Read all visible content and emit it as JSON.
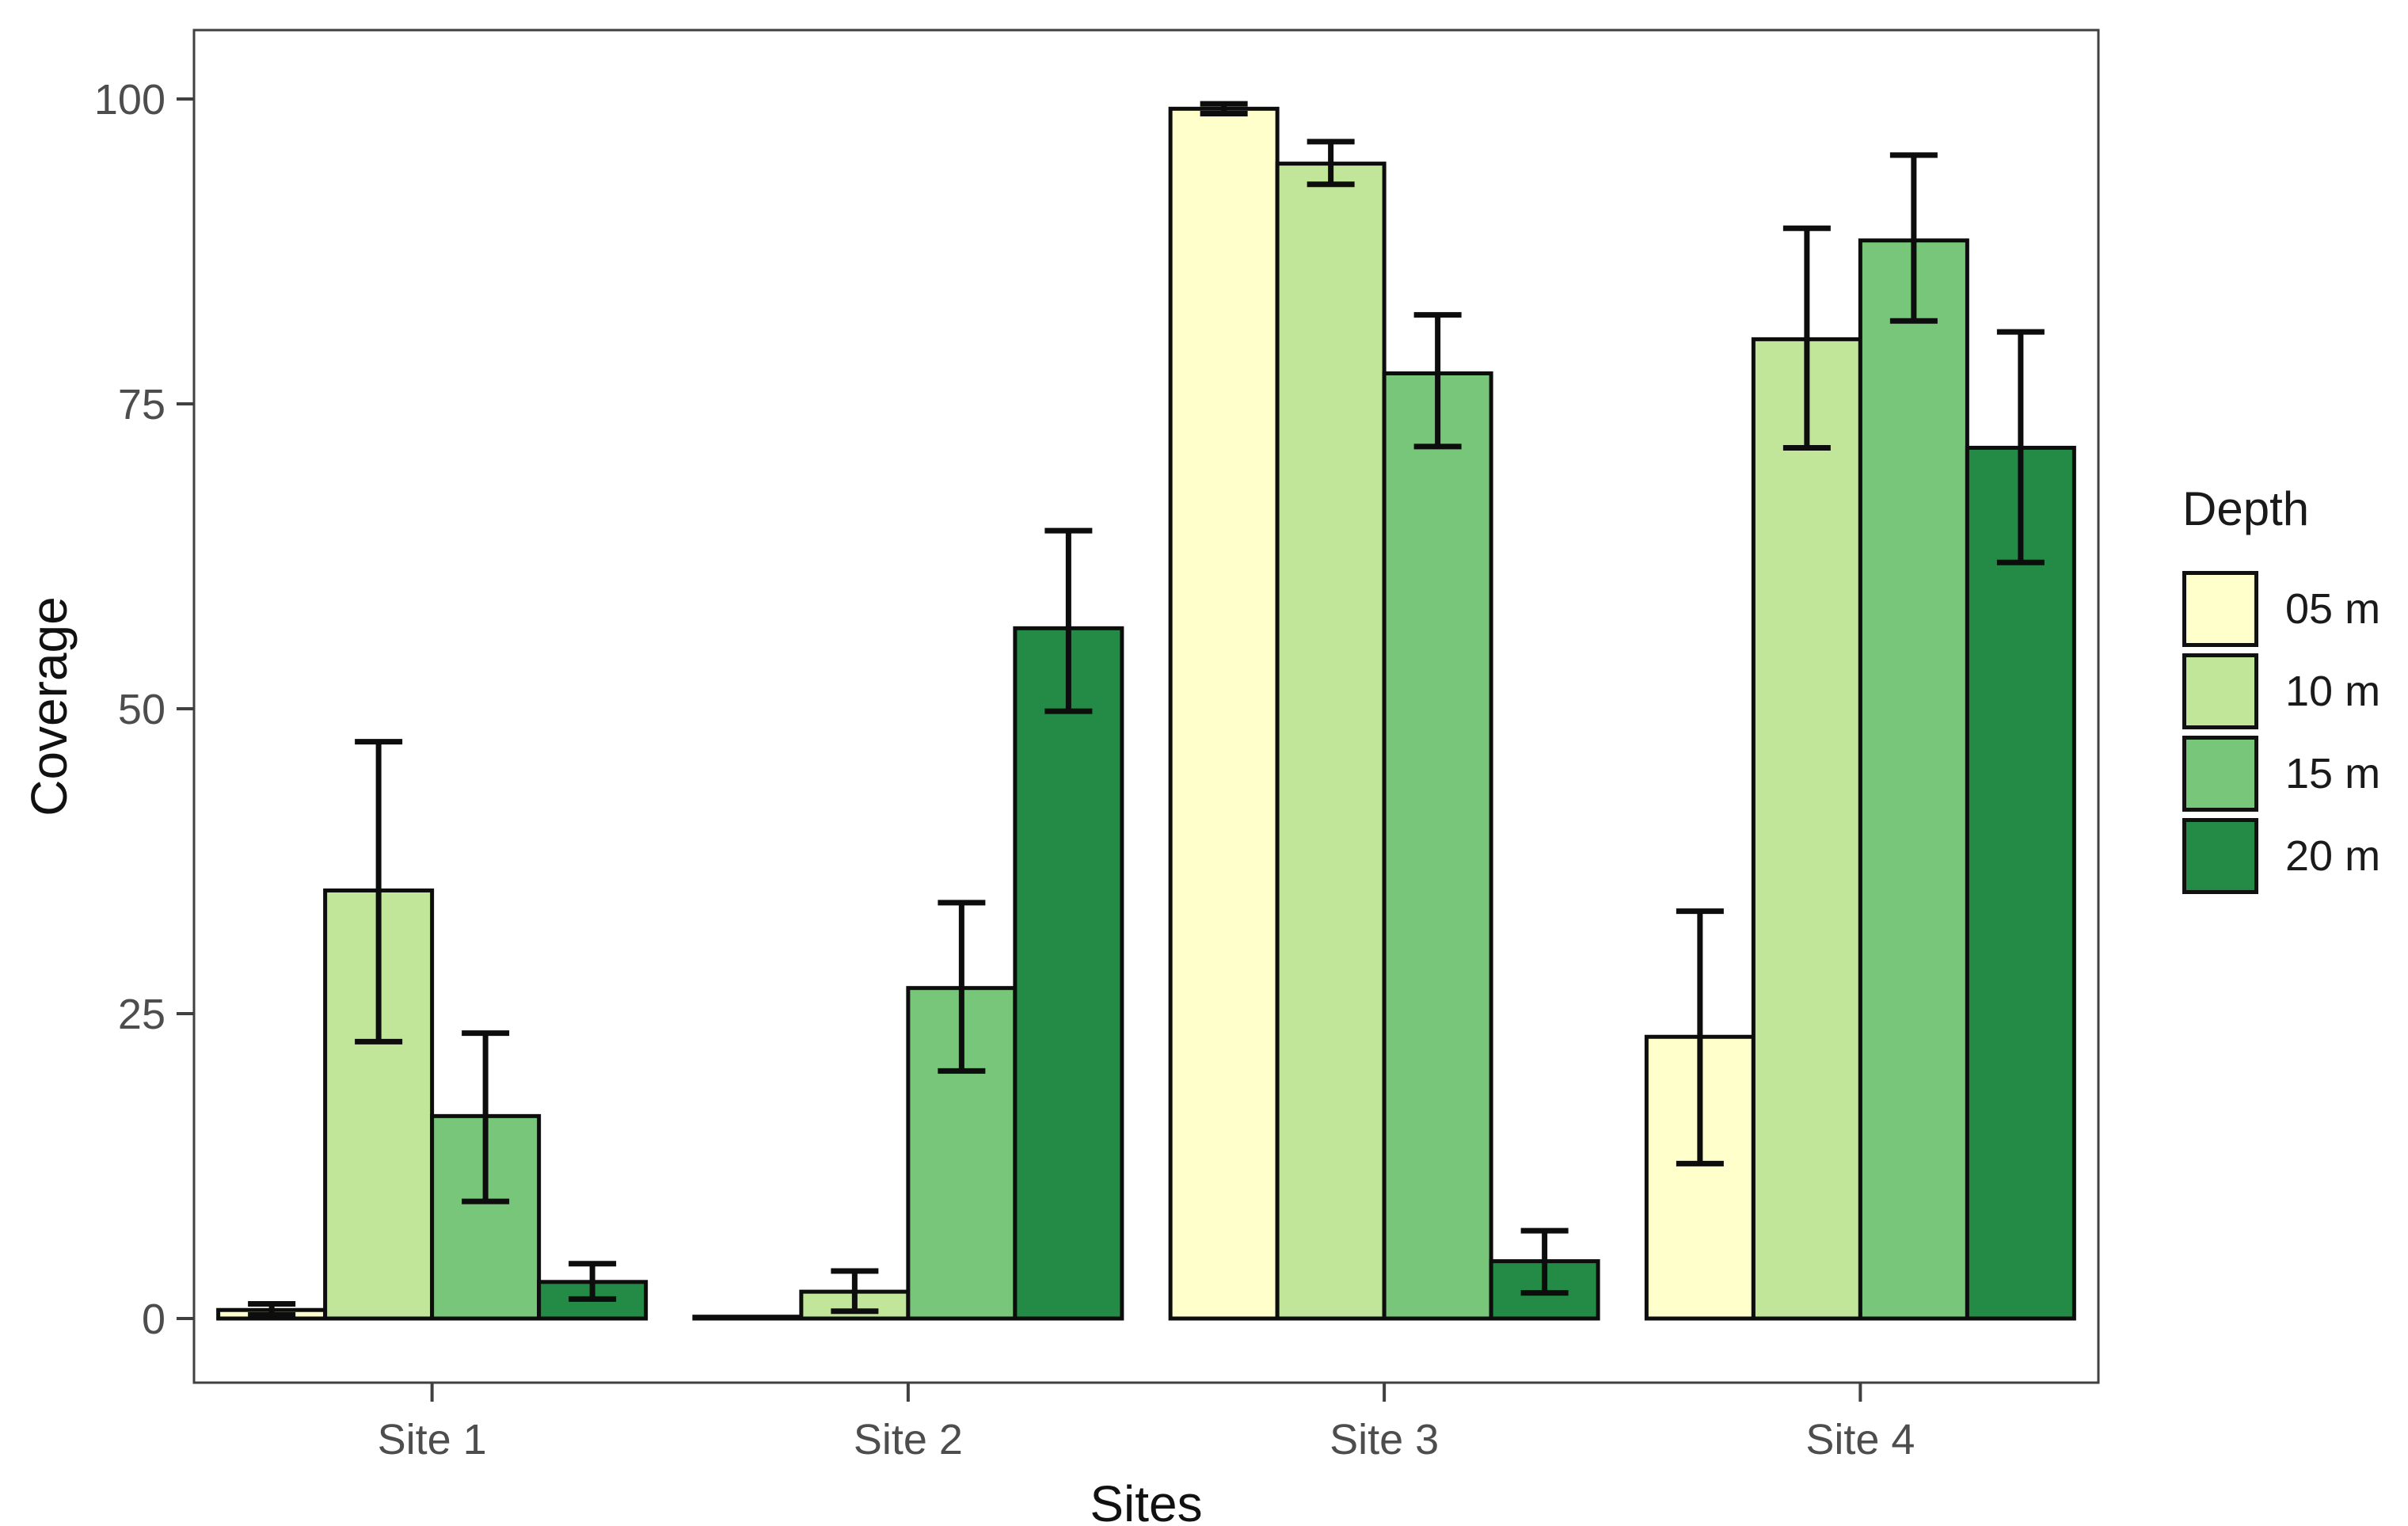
{
  "page": {
    "background": "#ffffff"
  },
  "chart_data": {
    "type": "bar",
    "title": "",
    "xlabel": "Sites",
    "ylabel": "Coverage",
    "categories": [
      "Site 1",
      "Site 2",
      "Site 3",
      "Site 4"
    ],
    "yticks": [
      0,
      25,
      50,
      75,
      100
    ],
    "ylim": [
      0,
      105
    ],
    "grid": false,
    "legend": {
      "title": "Depth",
      "position": "right"
    },
    "series": [
      {
        "label": "05 m",
        "color": "#FFFFCC",
        "values": [
          0.7,
          0.15,
          99.2,
          23.1
        ],
        "err_low": [
          0.3,
          0.15,
          98.8,
          12.7
        ],
        "err_high": [
          1.2,
          0.15,
          99.6,
          33.4
        ]
      },
      {
        "label": "10 m",
        "color": "#C2E699",
        "values": [
          35.1,
          2.2,
          94.7,
          80.3
        ],
        "err_low": [
          22.7,
          0.6,
          93.0,
          71.4
        ],
        "err_high": [
          47.3,
          3.9,
          96.5,
          89.4
        ]
      },
      {
        "label": "15 m",
        "color": "#78C679",
        "values": [
          16.6,
          27.1,
          77.5,
          88.4
        ],
        "err_low": [
          9.6,
          20.3,
          71.5,
          81.8
        ],
        "err_high": [
          23.4,
          34.1,
          82.3,
          95.4
        ]
      },
      {
        "label": "20 m",
        "color": "#238B45",
        "values": [
          3.0,
          56.6,
          4.7,
          71.4
        ],
        "err_low": [
          1.6,
          49.8,
          2.1,
          62.0
        ],
        "err_high": [
          4.5,
          64.6,
          7.2,
          80.9
        ]
      }
    ],
    "colors": {
      "axis_text": "#4d4d4d",
      "axis_title": "#111111",
      "panel_border": "#404040",
      "bar_outline": "#0d0d0d",
      "error_bar": "#0d0d0d"
    }
  }
}
